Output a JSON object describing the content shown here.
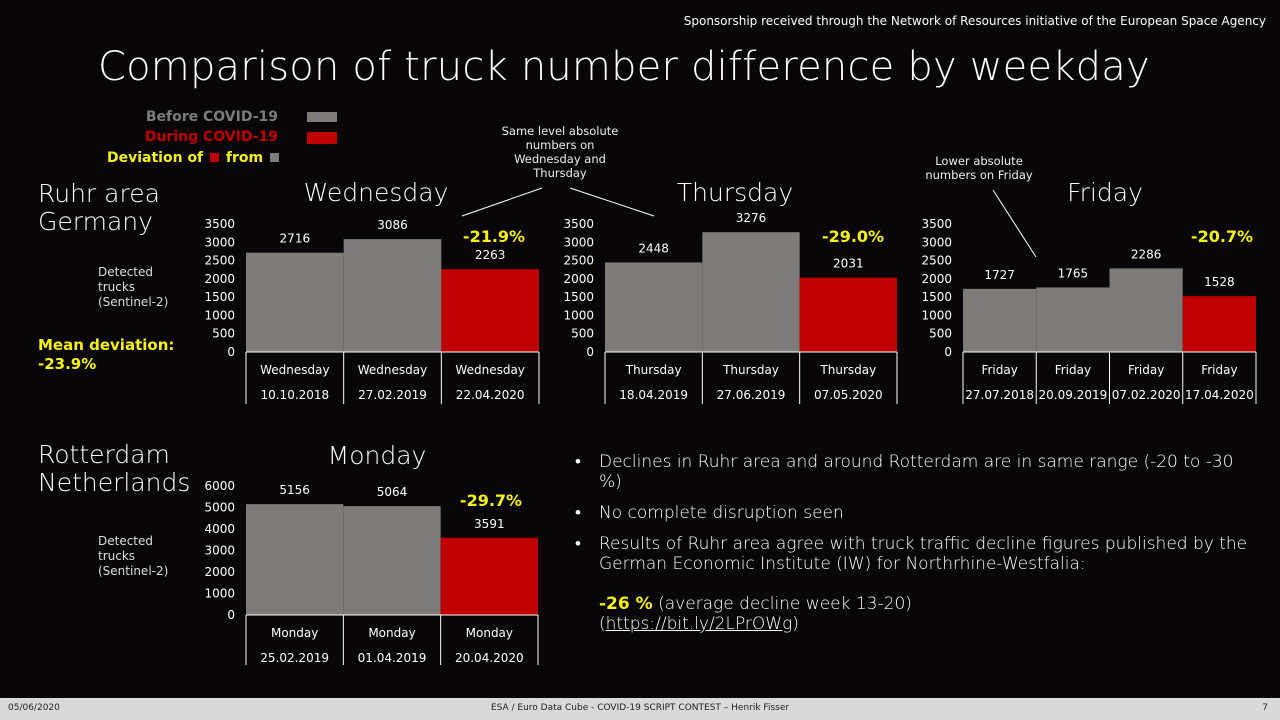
{
  "sponsor": "Sponsorship received through the Network of Resources initiative of the European Space Agency",
  "title": "Comparison of truck number difference by weekday",
  "legend": {
    "before": "Before COVID-19",
    "during": "During COVID-19",
    "deviation_prefix": "Deviation of",
    "deviation_mid": "from",
    "colors": {
      "before": "#7f7b79",
      "during": "#c00000",
      "deviation": "#f5f50a"
    }
  },
  "regions": {
    "ruhr_line1": "Ruhr area",
    "ruhr_line2": "Germany",
    "rotterdam_line1": "Rotterdam",
    "rotterdam_line2": "Netherlands"
  },
  "ylabel_ruhr": [
    "Detected",
    "trucks",
    "(Sentinel-2)"
  ],
  "ylabel_rotterdam": [
    "Detected",
    "trucks",
    "(Sentinel-2)"
  ],
  "mean_deviation_label": "Mean deviation:",
  "mean_deviation_value": "-23.9%",
  "annotations": {
    "same_level": [
      "Same level absolute",
      "numbers on",
      "Wednesday and",
      "Thursday"
    ],
    "lower_friday": [
      "Lower absolute",
      "numbers on Friday"
    ]
  },
  "bullets": {
    "b1": "Declines in Ruhr area and around Rotterdam are in same range (-20 to -30 %)",
    "b2": "No complete disruption seen",
    "b3": "Results of Ruhr area agree with truck traffic decline figures published by the German Economic Institute (IW) for Northrhine-Westfalia:",
    "b3_value": "-26 %",
    "b3_detail": "(average decline week 13-20)",
    "b3_link": "https://bit.ly/2LPrOWg",
    "b3_link_open": "(",
    "b3_link_close": ")"
  },
  "footer": {
    "date": "05/06/2020",
    "center": "ESA / Euro Data Cube - COVID-19 SCRIPT CONTEST – Henrik Fisser",
    "page": "7"
  },
  "chart_data": [
    {
      "type": "bar",
      "title": "Wednesday",
      "categories": [
        "Wednesday",
        "Wednesday",
        "Wednesday"
      ],
      "dates": [
        "10.10.2018",
        "27.02.2019",
        "22.04.2020"
      ],
      "values": [
        2716,
        3086,
        2263
      ],
      "periods": [
        "before",
        "before",
        "during"
      ],
      "yticks": [
        0,
        500,
        1000,
        1500,
        2000,
        2500,
        3000,
        3500
      ],
      "ylim": [
        0,
        3500
      ],
      "deviation": "-21.9%"
    },
    {
      "type": "bar",
      "title": "Thursday",
      "categories": [
        "Thursday",
        "Thursday",
        "Thursday"
      ],
      "dates": [
        "18.04.2019",
        "27.06.2019",
        "07.05.2020"
      ],
      "values": [
        2448,
        3276,
        2031
      ],
      "periods": [
        "before",
        "before",
        "during"
      ],
      "yticks": [
        0,
        500,
        1000,
        1500,
        2000,
        2500,
        3000,
        3500
      ],
      "ylim": [
        0,
        3500
      ],
      "deviation": "-29.0%"
    },
    {
      "type": "bar",
      "title": "Friday",
      "categories": [
        "Friday",
        "Friday",
        "Friday",
        "Friday"
      ],
      "dates": [
        "27.07.2018",
        "20.09.2019",
        "07.02.2020",
        "17.04.2020"
      ],
      "values": [
        1727,
        1765,
        2286,
        1528
      ],
      "periods": [
        "before",
        "before",
        "before",
        "during"
      ],
      "yticks": [
        0,
        500,
        1000,
        1500,
        2000,
        2500,
        3000,
        3500
      ],
      "ylim": [
        0,
        3500
      ],
      "deviation": "-20.7%"
    },
    {
      "type": "bar",
      "title": "Monday",
      "categories": [
        "Monday",
        "Monday",
        "Monday"
      ],
      "dates": [
        "25.02.2019",
        "01.04.2019",
        "20.04.2020"
      ],
      "values": [
        5156,
        5064,
        3591
      ],
      "periods": [
        "before",
        "before",
        "during"
      ],
      "yticks": [
        0,
        1000,
        2000,
        3000,
        4000,
        5000,
        6000
      ],
      "ylim": [
        0,
        6000
      ],
      "deviation": "-29.7%"
    }
  ]
}
